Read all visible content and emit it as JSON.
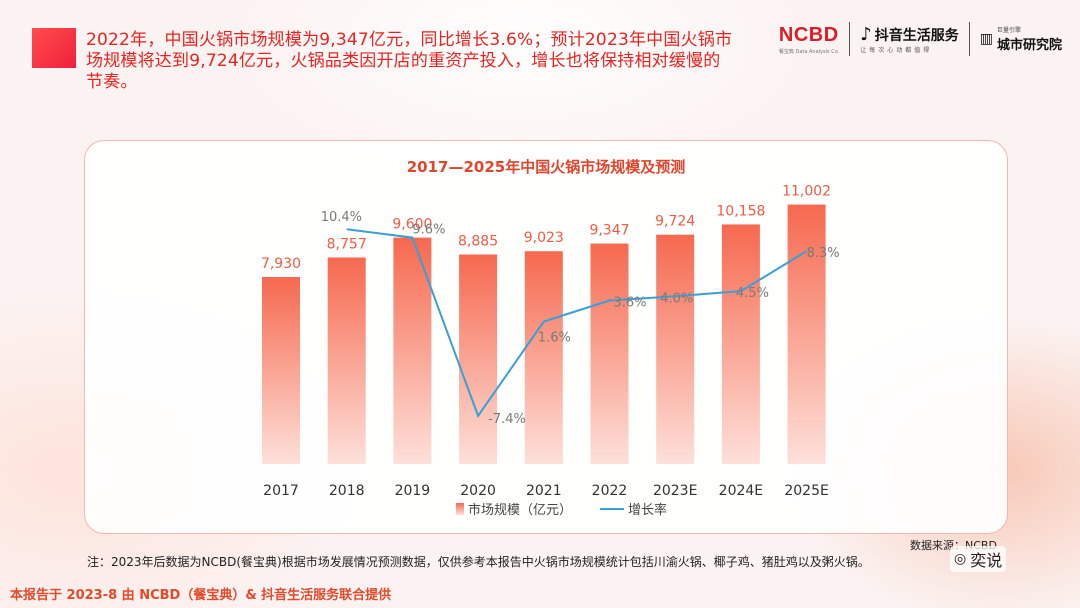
{
  "headline": "2022年，中国火锅市场规模为9,347亿元，同比增长3.6%；预计2023年中国火锅市场规模将达到9,724亿元，火锅品类因开店的重资产投入，增长也将保持相对缓慢的节奏。",
  "logos": {
    "ncbd": "NCBD",
    "ncbd_sub": "餐宝典 Data Analysis Co.",
    "douyin": "抖音生活服务",
    "douyin_sub": "让每次心动都值得",
    "city_small": "巨量引擎",
    "city": "城市研究院"
  },
  "chart_data": {
    "type": "bar",
    "title": "2017—2025年中国火锅市场规模及预测",
    "categories": [
      "2017",
      "2018",
      "2019",
      "2020",
      "2021",
      "2022",
      "2023E",
      "2024E",
      "2025E"
    ],
    "series": [
      {
        "name": "市场规模（亿元）",
        "type": "bar",
        "values": [
          7930,
          8757,
          9600,
          8885,
          9023,
          9347,
          9724,
          10158,
          11002
        ],
        "labels": [
          "7,930",
          "8,757",
          "9,600",
          "8,885",
          "9,023",
          "9,347",
          "9,724",
          "10,158",
          "11,002"
        ]
      },
      {
        "name": "增长率",
        "type": "line",
        "values": [
          null,
          10.4,
          9.6,
          -7.4,
          1.6,
          3.6,
          4.0,
          4.5,
          8.3
        ],
        "labels": [
          "",
          "10.4%",
          "9.6%",
          "-7.4%",
          "1.6%",
          "3.6%",
          "4.0%",
          "4.5%",
          "8.3%"
        ]
      }
    ],
    "ylim": [
      0,
      12000
    ],
    "y2lim": [
      -12,
      15
    ],
    "legend": "bottom",
    "grid": false
  },
  "colors": {
    "bar_top": "#f6694f",
    "bar_bottom": "#fde0da",
    "line": "#3a9fd6",
    "title": "#e0462c"
  },
  "footnote": "注：2023年后数据为NCBD(餐宝典)根据市场发展情况预测数据，仅供参考本报告中火锅市场规模统计包括川渝火锅、椰子鸡、猪肚鸡以及粥火锅。",
  "source": "数据来源：NCBD",
  "wechat_name": "奕说",
  "bottom_credit": "本报告于 2023-8 由 NCBD（餐宝典）& 抖音生活服务联合提供"
}
